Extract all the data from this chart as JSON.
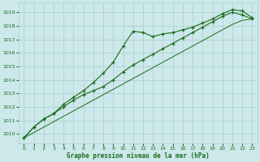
{
  "xlabel": "Graphe pression niveau de la mer (hPa)",
  "bg_color": "#cce8ea",
  "grid_color": "#aacccc",
  "line_color": "#1a6b1a",
  "xlim": [
    -0.5,
    23.5
  ],
  "ylim": [
    1009.3,
    1019.7
  ],
  "yticks": [
    1010,
    1011,
    1012,
    1013,
    1014,
    1015,
    1016,
    1017,
    1018,
    1019
  ],
  "xticks": [
    0,
    1,
    2,
    3,
    4,
    5,
    6,
    7,
    8,
    9,
    10,
    11,
    12,
    13,
    14,
    15,
    16,
    17,
    18,
    19,
    20,
    21,
    22,
    23
  ],
  "line1_bumpy": {
    "x": [
      0,
      1,
      2,
      3,
      4,
      5,
      6,
      7,
      8,
      9,
      10,
      11,
      12,
      13,
      14,
      15,
      16,
      17,
      18,
      19,
      20,
      21,
      22,
      23
    ],
    "y": [
      1009.7,
      1010.5,
      1011.1,
      1011.5,
      1012.2,
      1012.7,
      1013.2,
      1013.8,
      1014.5,
      1015.3,
      1016.5,
      1017.6,
      1017.5,
      1017.2,
      1017.4,
      1017.5,
      1017.7,
      1017.9,
      1018.2,
      1018.5,
      1018.9,
      1019.2,
      1019.1,
      1018.6
    ]
  },
  "line2_middle": {
    "x": [
      0,
      1,
      2,
      3,
      4,
      5,
      6,
      7,
      8,
      9,
      10,
      11,
      12,
      13,
      14,
      15,
      16,
      17,
      18,
      19,
      20,
      21,
      22,
      23
    ],
    "y": [
      1009.7,
      1010.5,
      1011.1,
      1011.5,
      1012.0,
      1012.5,
      1012.9,
      1013.2,
      1013.5,
      1014.0,
      1014.6,
      1015.1,
      1015.5,
      1015.9,
      1016.3,
      1016.7,
      1017.1,
      1017.5,
      1017.9,
      1018.3,
      1018.7,
      1019.0,
      1018.8,
      1018.5
    ]
  },
  "line3_smooth": {
    "x": [
      0,
      1,
      2,
      3,
      4,
      5,
      6,
      7,
      8,
      9,
      10,
      11,
      12,
      13,
      14,
      15,
      16,
      17,
      18,
      19,
      20,
      21,
      22,
      23
    ],
    "y": [
      1009.7,
      1010.1,
      1010.5,
      1010.9,
      1011.3,
      1011.7,
      1012.1,
      1012.5,
      1012.9,
      1013.3,
      1013.7,
      1014.1,
      1014.5,
      1014.9,
      1015.3,
      1015.7,
      1016.1,
      1016.5,
      1016.9,
      1017.3,
      1017.7,
      1018.1,
      1018.4,
      1018.5
    ]
  }
}
